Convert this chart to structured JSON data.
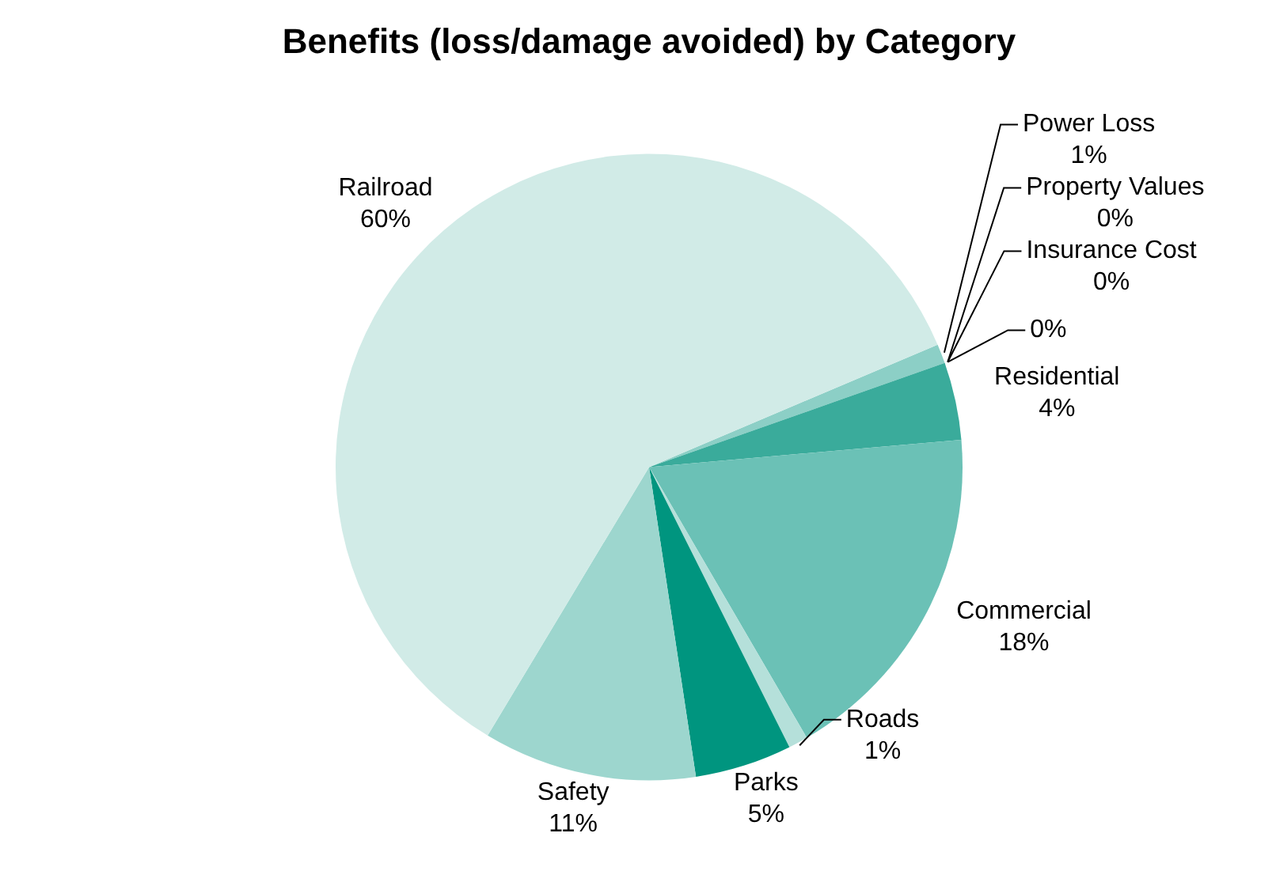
{
  "chart_data": {
    "type": "pie",
    "title": "Benefits (loss/damage avoided) by Category",
    "categories": [
      "Power Loss",
      "Property Values",
      "Insurance Cost",
      null,
      "Residential",
      "Commercial",
      "Roads",
      "Parks",
      "Safety",
      "Railroad"
    ],
    "values": [
      1,
      0,
      0,
      0,
      4,
      18,
      1,
      5,
      11,
      60
    ],
    "value_labels": [
      "1%",
      "0%",
      "0%",
      "0%",
      "4%",
      "18%",
      "1%",
      "5%",
      "11%",
      "60%"
    ],
    "colors": [
      "#8ccfc6",
      "#00957f",
      "#00957f",
      "#00957f",
      "#3aab9b",
      "#6bc1b6",
      "#b5e0da",
      "#00957f",
      "#9dd6ce",
      "#d1ebe7"
    ],
    "legend": false
  }
}
